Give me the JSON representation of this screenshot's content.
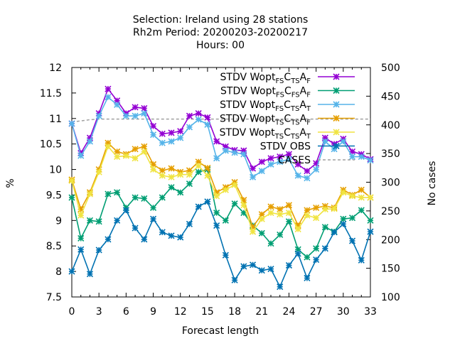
{
  "chart_data": {
    "type": "line",
    "title_lines": [
      "Selection: Ireland using    28 stations",
      "Rh2m   Period: 20200203-20200217",
      "Hours:  00"
    ],
    "xlabel": "Forecast length",
    "ylabel": "%",
    "y2label": "No cases",
    "xlim": [
      0,
      33
    ],
    "ylim": [
      7.5,
      12
    ],
    "y2lim": [
      100,
      500
    ],
    "x_ticks": [
      "0",
      "3",
      "6",
      "9",
      "12",
      "15",
      "18",
      "21",
      "24",
      "27",
      "30",
      "33"
    ],
    "y_ticks": [
      "7.5",
      "8",
      "8.5",
      "9",
      "9.5",
      "10",
      "10.5",
      "11",
      "11.5",
      "12"
    ],
    "y2_ticks": [
      "100",
      "150",
      "200",
      "250",
      "300",
      "350",
      "400",
      "450",
      "500"
    ],
    "grid": false,
    "legend_position": "top-right",
    "x": [
      0,
      1,
      2,
      3,
      4,
      5,
      6,
      7,
      8,
      9,
      10,
      11,
      12,
      13,
      14,
      15,
      16,
      17,
      18,
      19,
      20,
      21,
      22,
      23,
      24,
      25,
      26,
      27,
      28,
      29,
      30,
      31,
      32,
      33
    ],
    "series": [
      {
        "legend": [
          [
            "STDV Wopt",
            ""
          ],
          [
            "FS",
            "sub"
          ],
          [
            "C",
            ""
          ],
          [
            "TS",
            "sub"
          ],
          [
            "A",
            ""
          ],
          [
            "F",
            "sub"
          ]
        ],
        "color": "#9400d3",
        "values": [
          10.9,
          10.32,
          10.62,
          11.1,
          11.58,
          11.35,
          11.1,
          11.22,
          11.2,
          10.85,
          10.7,
          10.72,
          10.75,
          11.05,
          11.1,
          11.02,
          10.55,
          10.45,
          10.38,
          10.37,
          10.02,
          10.15,
          10.22,
          10.25,
          10.3,
          10.1,
          9.97,
          10.12,
          10.62,
          10.5,
          10.6,
          10.35,
          10.3,
          10.2
        ],
        "axis": "y"
      },
      {
        "legend": [
          [
            "STDV Wopt",
            ""
          ],
          [
            "FS",
            "sub"
          ],
          [
            "C",
            ""
          ],
          [
            "FS",
            "sub"
          ],
          [
            "A",
            ""
          ],
          [
            "F",
            "sub"
          ]
        ],
        "color": "#009e73",
        "values": [
          9.45,
          8.65,
          9.0,
          8.98,
          9.52,
          9.55,
          9.25,
          9.45,
          9.43,
          9.25,
          9.45,
          9.65,
          9.55,
          9.72,
          9.95,
          10.0,
          9.15,
          9.0,
          9.33,
          9.15,
          8.9,
          8.75,
          8.55,
          8.72,
          8.98,
          8.43,
          8.28,
          8.45,
          8.87,
          8.78,
          9.03,
          9.05,
          9.2,
          9.0
        ],
        "axis": "y"
      },
      {
        "legend": [
          [
            "STDV Wopt",
            ""
          ],
          [
            "FS",
            "sub"
          ],
          [
            "C",
            ""
          ],
          [
            "TS",
            "sub"
          ],
          [
            "A",
            ""
          ],
          [
            "T",
            "sub"
          ]
        ],
        "color": "#56b4e9",
        "values": [
          10.9,
          10.27,
          10.55,
          11.05,
          11.42,
          11.27,
          11.05,
          11.05,
          11.1,
          10.68,
          10.52,
          10.55,
          10.62,
          10.83,
          10.98,
          10.88,
          10.22,
          10.37,
          10.33,
          10.3,
          9.85,
          9.97,
          10.1,
          10.15,
          10.2,
          9.88,
          9.83,
          10.0,
          10.55,
          10.4,
          10.55,
          10.25,
          10.25,
          10.18
        ],
        "axis": "y"
      },
      {
        "legend": [
          [
            "STDV Wopt",
            ""
          ],
          [
            "TS",
            "sub"
          ],
          [
            "C",
            ""
          ],
          [
            "TS",
            "sub"
          ],
          [
            "A",
            ""
          ],
          [
            "F",
            "sub"
          ]
        ],
        "color": "#e69f00",
        "values": [
          9.8,
          9.22,
          9.55,
          10.0,
          10.52,
          10.35,
          10.3,
          10.4,
          10.45,
          10.1,
          9.98,
          10.02,
          9.95,
          9.98,
          10.15,
          10.03,
          9.55,
          9.65,
          9.75,
          9.4,
          8.87,
          9.12,
          9.27,
          9.22,
          9.3,
          8.9,
          9.2,
          9.25,
          9.28,
          9.25,
          9.6,
          9.5,
          9.6,
          9.45
        ],
        "axis": "y"
      },
      {
        "legend": [
          [
            "STDV Wopt",
            ""
          ],
          [
            "TS",
            "sub"
          ],
          [
            "C",
            ""
          ],
          [
            "TS",
            "sub"
          ],
          [
            "A",
            ""
          ],
          [
            "T",
            "sub"
          ]
        ],
        "color": "#f0e442",
        "values": [
          9.78,
          9.1,
          9.52,
          9.95,
          10.45,
          10.25,
          10.27,
          10.22,
          10.35,
          10.0,
          9.88,
          9.85,
          9.9,
          9.9,
          10.07,
          9.88,
          9.48,
          9.6,
          9.7,
          9.3,
          8.78,
          9.03,
          9.15,
          9.12,
          9.15,
          8.83,
          9.1,
          9.05,
          9.22,
          9.23,
          9.55,
          9.48,
          9.45,
          9.45
        ],
        "axis": "y"
      },
      {
        "legend": [
          [
            "STDV OBS",
            ""
          ]
        ],
        "color": "#0072b2",
        "values": [
          8.0,
          8.43,
          7.95,
          8.42,
          8.63,
          9.0,
          9.2,
          8.85,
          8.63,
          9.03,
          8.77,
          8.7,
          8.67,
          8.93,
          9.27,
          9.37,
          8.9,
          8.32,
          7.83,
          8.1,
          8.13,
          8.02,
          8.05,
          7.7,
          8.12,
          8.35,
          7.87,
          8.23,
          8.45,
          8.77,
          8.93,
          8.6,
          8.22,
          8.78
        ],
        "axis": "y"
      }
    ],
    "cases_series": {
      "legend": [
        [
          "CASES",
          ""
        ]
      ],
      "color": "#a0a0a0",
      "values": [
        405,
        407,
        409,
        410,
        410,
        410,
        410,
        410,
        410,
        410,
        410,
        410,
        410,
        410,
        410,
        410,
        410,
        410,
        410,
        410,
        410,
        410,
        410,
        410,
        410,
        410,
        410,
        410,
        410,
        410,
        410,
        410,
        410,
        410
      ],
      "axis": "y2",
      "dashed": true
    }
  }
}
